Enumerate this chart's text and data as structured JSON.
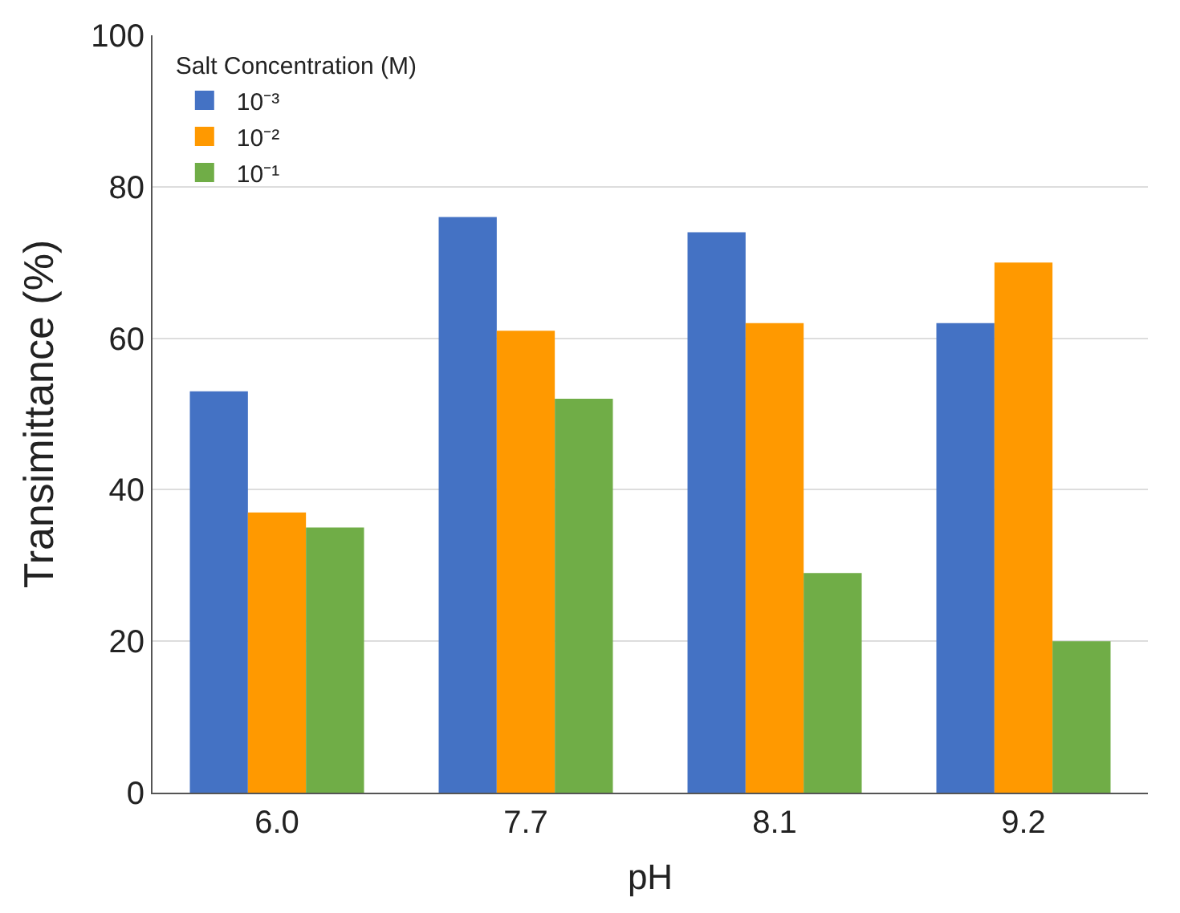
{
  "chart_data": {
    "type": "bar",
    "xlabel": "pH",
    "ylabel": "Transimittance (%)",
    "legend_title": "Salt Concentration (M)",
    "categories": [
      "6.0",
      "7.7",
      "8.1",
      "9.2"
    ],
    "series": [
      {
        "name": "10⁻³",
        "color": "#4472c4",
        "values": [
          53,
          76,
          74,
          62
        ]
      },
      {
        "name": "10⁻²",
        "color": "#ff9900",
        "values": [
          37,
          61,
          62,
          70
        ]
      },
      {
        "name": "10⁻¹",
        "color": "#70ad47",
        "values": [
          35,
          52,
          29,
          20
        ]
      }
    ],
    "ylim": [
      0,
      100
    ],
    "yticks": [
      0,
      20,
      40,
      60,
      80,
      100
    ],
    "grid": "y",
    "legend": "top left"
  }
}
